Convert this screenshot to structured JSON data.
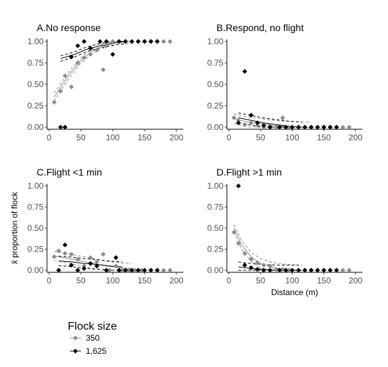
{
  "chart_data": [
    {
      "type": "scatter",
      "panel": "A",
      "title": "A.No response",
      "xlim": [
        0,
        200
      ],
      "ylim": [
        0,
        1
      ],
      "x_ticks": [
        "0",
        "50",
        "100",
        "150",
        "200"
      ],
      "y_ticks": [
        "0.00",
        "0.25",
        "0.50",
        "0.75",
        "1.00"
      ],
      "xlabel": "",
      "ylabel": "",
      "series": [
        {
          "name": "350",
          "color": "#8c8c8c",
          "points": [
            [
              8,
              0.29
            ],
            [
              18,
              0.42
            ],
            [
              25,
              0.6
            ],
            [
              35,
              0.47
            ],
            [
              45,
              0.75
            ],
            [
              55,
              0.81
            ],
            [
              65,
              0.85
            ],
            [
              75,
              0.9
            ],
            [
              85,
              0.67
            ],
            [
              90,
              0.95
            ],
            [
              100,
              1.0
            ],
            [
              110,
              1.0
            ],
            [
              120,
              1.0
            ],
            [
              130,
              1.0
            ],
            [
              140,
              1.0
            ],
            [
              150,
              1.0
            ],
            [
              160,
              1.0
            ],
            [
              170,
              1.0
            ],
            [
              180,
              1.0
            ],
            [
              190,
              1.0
            ]
          ],
          "fit": [
            [
              8,
              0.35
            ],
            [
              30,
              0.6
            ],
            [
              50,
              0.78
            ],
            [
              70,
              0.9
            ],
            [
              90,
              0.96
            ],
            [
              110,
              0.99
            ],
            [
              130,
              1.0
            ]
          ]
        },
        {
          "name": "1,625",
          "color": "#000000",
          "points": [
            [
              18,
              0.0
            ],
            [
              25,
              0.0
            ],
            [
              35,
              0.82
            ],
            [
              45,
              0.95
            ],
            [
              55,
              1.0
            ],
            [
              65,
              0.92
            ],
            [
              80,
              1.0
            ],
            [
              90,
              1.0
            ],
            [
              100,
              0.85
            ],
            [
              110,
              1.0
            ],
            [
              120,
              1.0
            ],
            [
              130,
              1.0
            ],
            [
              140,
              1.0
            ],
            [
              150,
              1.0
            ],
            [
              160,
              1.0
            ],
            [
              170,
              1.0
            ]
          ],
          "fit": [
            [
              18,
              0.8
            ],
            [
              40,
              0.85
            ],
            [
              60,
              0.91
            ],
            [
              80,
              0.95
            ],
            [
              100,
              0.98
            ],
            [
              120,
              1.0
            ]
          ]
        }
      ]
    },
    {
      "type": "scatter",
      "panel": "B",
      "title": "B.Respond, no flight",
      "xlim": [
        0,
        200
      ],
      "ylim": [
        0,
        1
      ],
      "x_ticks": [
        "0",
        "50",
        "100",
        "150",
        "200"
      ],
      "y_ticks": [
        "0.00",
        "0.25",
        "0.50",
        "0.75",
        "1.00"
      ],
      "xlabel": "",
      "ylabel": "",
      "series": [
        {
          "name": "350",
          "color": "#8c8c8c",
          "points": [
            [
              8,
              0.11
            ],
            [
              15,
              0.08
            ],
            [
              25,
              0.03
            ],
            [
              35,
              0.05
            ],
            [
              45,
              0.02
            ],
            [
              55,
              0.0
            ],
            [
              65,
              0.01
            ],
            [
              75,
              0.0
            ],
            [
              85,
              0.11
            ],
            [
              95,
              0.0
            ],
            [
              110,
              0.0
            ],
            [
              120,
              0.0
            ],
            [
              130,
              0.0
            ],
            [
              140,
              0.0
            ],
            [
              150,
              0.0
            ],
            [
              160,
              0.0
            ],
            [
              170,
              0.0
            ],
            [
              180,
              0.0
            ],
            [
              190,
              0.0
            ]
          ],
          "fit": [
            [
              8,
              0.1
            ],
            [
              30,
              0.06
            ],
            [
              50,
              0.04
            ],
            [
              70,
              0.02
            ],
            [
              90,
              0.01
            ],
            [
              110,
              0.0
            ],
            [
              130,
              0.0
            ]
          ]
        },
        {
          "name": "1,625",
          "color": "#000000",
          "points": [
            [
              15,
              0.05
            ],
            [
              25,
              0.65
            ],
            [
              35,
              0.14
            ],
            [
              45,
              0.05
            ],
            [
              55,
              0.02
            ],
            [
              65,
              0.0
            ],
            [
              80,
              0.0
            ],
            [
              90,
              0.0
            ],
            [
              100,
              0.0
            ],
            [
              110,
              0.0
            ],
            [
              120,
              0.0
            ],
            [
              130,
              0.0
            ],
            [
              140,
              0.0
            ],
            [
              150,
              0.0
            ],
            [
              160,
              0.0
            ],
            [
              170,
              0.0
            ]
          ],
          "fit": [
            [
              15,
              0.11
            ],
            [
              35,
              0.08
            ],
            [
              55,
              0.05
            ],
            [
              75,
              0.03
            ],
            [
              95,
              0.01
            ],
            [
              115,
              0.0
            ]
          ]
        }
      ]
    },
    {
      "type": "scatter",
      "panel": "C",
      "title": "C.Flight <1 min",
      "xlim": [
        0,
        200
      ],
      "ylim": [
        0,
        1
      ],
      "x_ticks": [
        "0",
        "50",
        "100",
        "150",
        "200"
      ],
      "y_ticks": [
        "0.00",
        "0.25",
        "0.50",
        "0.75",
        "1.00"
      ],
      "xlabel": "",
      "ylabel": "x̄ proportion of flock",
      "series": [
        {
          "name": "350",
          "color": "#8c8c8c",
          "points": [
            [
              8,
              0.16
            ],
            [
              15,
              0.23
            ],
            [
              25,
              0.2
            ],
            [
              35,
              0.19
            ],
            [
              45,
              0.13
            ],
            [
              55,
              0.05
            ],
            [
              65,
              0.15
            ],
            [
              75,
              0.1
            ],
            [
              85,
              0.19
            ],
            [
              95,
              0.0
            ],
            [
              105,
              0.05
            ],
            [
              115,
              0.0
            ],
            [
              125,
              0.0
            ],
            [
              135,
              0.0
            ],
            [
              145,
              0.0
            ],
            [
              160,
              0.0
            ],
            [
              170,
              0.0
            ],
            [
              180,
              0.0
            ],
            [
              190,
              0.0
            ]
          ],
          "fit": [
            [
              8,
              0.17
            ],
            [
              30,
              0.14
            ],
            [
              50,
              0.11
            ],
            [
              70,
              0.08
            ],
            [
              90,
              0.05
            ],
            [
              110,
              0.03
            ],
            [
              130,
              0.02
            ]
          ]
        },
        {
          "name": "1,625",
          "color": "#000000",
          "points": [
            [
              15,
              0.0
            ],
            [
              25,
              0.3
            ],
            [
              35,
              0.06
            ],
            [
              45,
              0.0
            ],
            [
              55,
              0.02
            ],
            [
              65,
              0.08
            ],
            [
              75,
              0.05
            ],
            [
              90,
              0.0
            ],
            [
              105,
              0.15
            ],
            [
              110,
              0.0
            ],
            [
              120,
              0.0
            ],
            [
              130,
              0.0
            ],
            [
              140,
              0.0
            ],
            [
              150,
              0.0
            ],
            [
              160,
              0.0
            ],
            [
              170,
              0.0
            ]
          ],
          "fit": [
            [
              15,
              0.11
            ],
            [
              35,
              0.1
            ],
            [
              55,
              0.08
            ],
            [
              75,
              0.07
            ],
            [
              95,
              0.05
            ],
            [
              115,
              0.04
            ]
          ]
        }
      ]
    },
    {
      "type": "scatter",
      "panel": "D",
      "title": "D.Flight >1 min",
      "xlim": [
        0,
        200
      ],
      "ylim": [
        0,
        1
      ],
      "x_ticks": [
        "0",
        "50",
        "100",
        "150",
        "200"
      ],
      "y_ticks": [
        "0.00",
        "0.25",
        "0.50",
        "0.75",
        "1.00"
      ],
      "xlabel": "Distance (m)",
      "ylabel": "",
      "series": [
        {
          "name": "350",
          "color": "#8c8c8c",
          "points": [
            [
              8,
              0.45
            ],
            [
              15,
              0.32
            ],
            [
              25,
              0.2
            ],
            [
              35,
              0.13
            ],
            [
              45,
              0.09
            ],
            [
              55,
              0.06
            ],
            [
              65,
              0.05
            ],
            [
              75,
              0.01
            ],
            [
              85,
              0.01
            ],
            [
              95,
              0.0
            ],
            [
              110,
              0.0
            ],
            [
              120,
              0.0
            ],
            [
              130,
              0.0
            ],
            [
              140,
              0.0
            ],
            [
              150,
              0.0
            ],
            [
              160,
              0.0
            ],
            [
              170,
              0.0
            ],
            [
              180,
              0.0
            ],
            [
              190,
              0.0
            ]
          ],
          "fit": [
            [
              8,
              0.5
            ],
            [
              20,
              0.3
            ],
            [
              35,
              0.16
            ],
            [
              50,
              0.08
            ],
            [
              70,
              0.03
            ],
            [
              90,
              0.01
            ],
            [
              110,
              0.0
            ]
          ]
        },
        {
          "name": "1,625",
          "color": "#000000",
          "points": [
            [
              15,
              1.0
            ],
            [
              25,
              0.06
            ],
            [
              35,
              0.03
            ],
            [
              45,
              0.01
            ],
            [
              55,
              0.0
            ],
            [
              65,
              0.0
            ],
            [
              80,
              0.0
            ],
            [
              90,
              0.0
            ],
            [
              100,
              0.0
            ],
            [
              110,
              0.0
            ],
            [
              120,
              0.0
            ],
            [
              130,
              0.0
            ],
            [
              140,
              0.0
            ],
            [
              150,
              0.0
            ],
            [
              160,
              0.0
            ],
            [
              170,
              0.0
            ]
          ],
          "fit": [
            [
              15,
              0.04
            ],
            [
              35,
              0.02
            ],
            [
              55,
              0.01
            ],
            [
              75,
              0.0
            ],
            [
              95,
              0.0
            ],
            [
              115,
              0.0
            ]
          ]
        }
      ]
    }
  ],
  "legend": {
    "title": "Flock size",
    "items": [
      {
        "label": "350",
        "color": "#8c8c8c"
      },
      {
        "label": "1,625",
        "color": "#000000"
      }
    ]
  }
}
